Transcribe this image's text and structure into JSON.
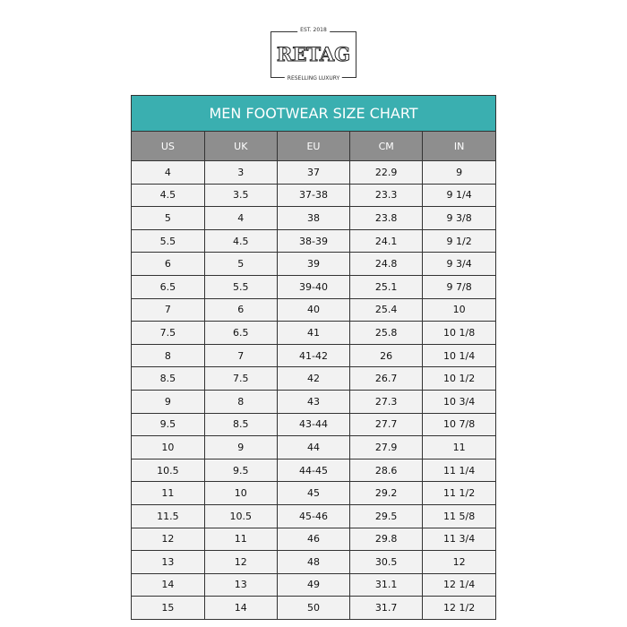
{
  "logo": {
    "est": "EST. 2018",
    "name": "RETAG",
    "tagline": "RESELLING LUXURY"
  },
  "title": "MEN FOOTWEAR SIZE CHART",
  "colors": {
    "title_bg": "#3aafb0",
    "header_bg": "#8e8e8e",
    "row_bg": "#f2f2f2"
  },
  "columns": [
    "US",
    "UK",
    "EU",
    "CM",
    "IN"
  ],
  "rows": [
    [
      "4",
      "3",
      "37",
      "22.9",
      "9"
    ],
    [
      "4.5",
      "3.5",
      "37-38",
      "23.3",
      "9 1/4"
    ],
    [
      "5",
      "4",
      "38",
      "23.8",
      "9 3/8"
    ],
    [
      "5.5",
      "4.5",
      "38-39",
      "24.1",
      "9 1/2"
    ],
    [
      "6",
      "5",
      "39",
      "24.8",
      "9 3/4"
    ],
    [
      "6.5",
      "5.5",
      "39-40",
      "25.1",
      "9 7/8"
    ],
    [
      "7",
      "6",
      "40",
      "25.4",
      "10"
    ],
    [
      "7.5",
      "6.5",
      "41",
      "25.8",
      "10 1/8"
    ],
    [
      "8",
      "7",
      "41-42",
      "26",
      "10 1/4"
    ],
    [
      "8.5",
      "7.5",
      "42",
      "26.7",
      "10 1/2"
    ],
    [
      "9",
      "8",
      "43",
      "27.3",
      "10 3/4"
    ],
    [
      "9.5",
      "8.5",
      "43-44",
      "27.7",
      "10 7/8"
    ],
    [
      "10",
      "9",
      "44",
      "27.9",
      "11"
    ],
    [
      "10.5",
      "9.5",
      "44-45",
      "28.6",
      "11 1/4"
    ],
    [
      "11",
      "10",
      "45",
      "29.2",
      "11 1/2"
    ],
    [
      "11.5",
      "10.5",
      "45-46",
      "29.5",
      "11 5/8"
    ],
    [
      "12",
      "11",
      "46",
      "29.8",
      "11 3/4"
    ],
    [
      "13",
      "12",
      "48",
      "30.5",
      "12"
    ],
    [
      "14",
      "13",
      "49",
      "31.1",
      "12 1/4"
    ],
    [
      "15",
      "14",
      "50",
      "31.7",
      "12 1/2"
    ]
  ]
}
